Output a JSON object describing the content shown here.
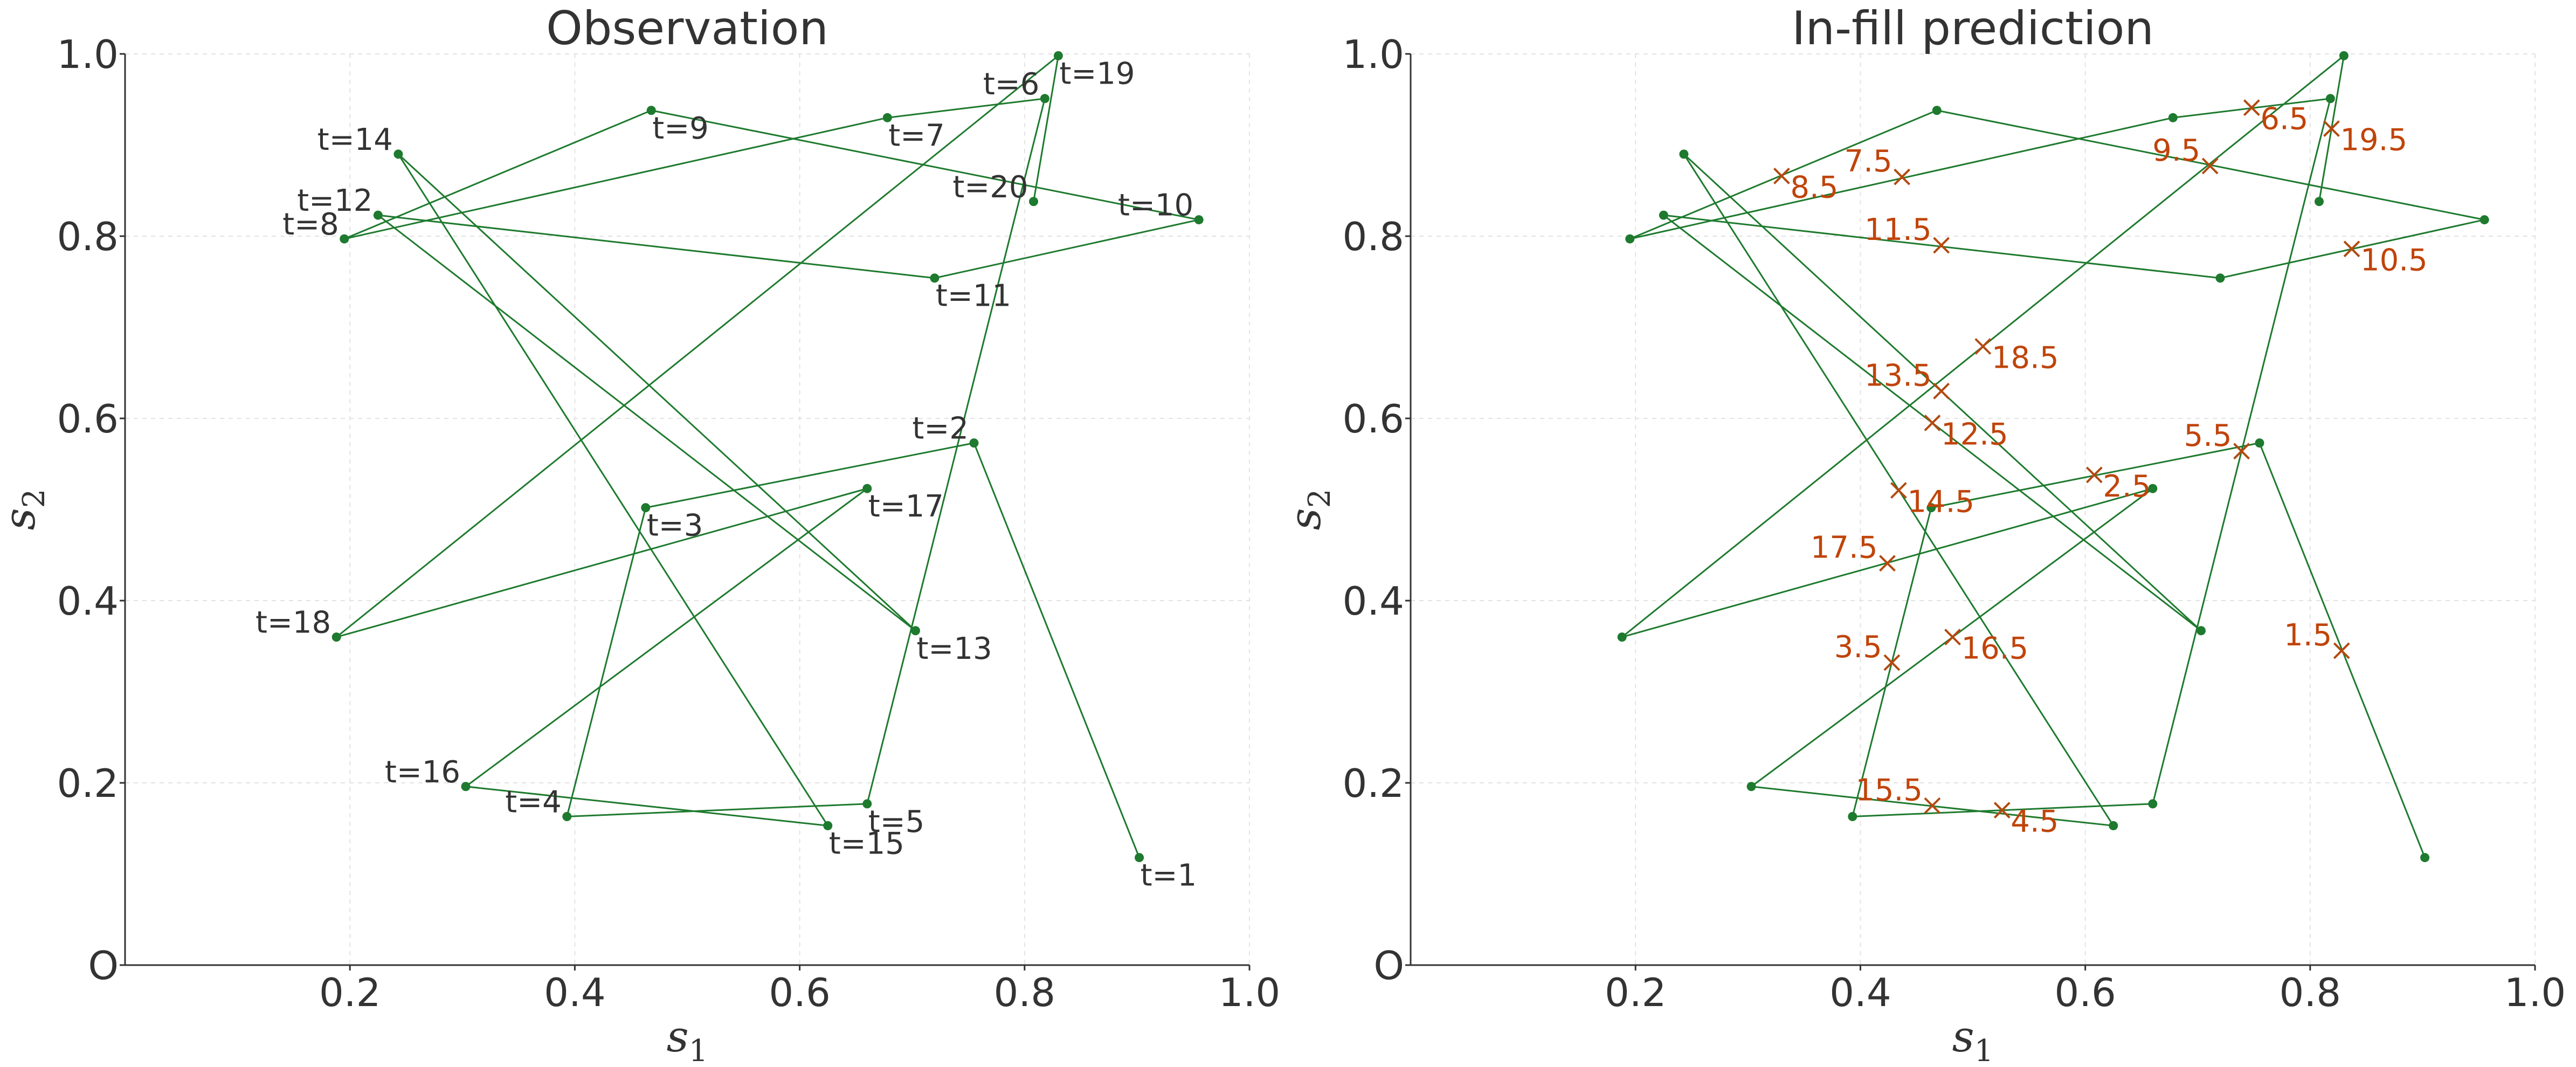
{
  "colors": {
    "path": "#1e7a2e",
    "marker": "#1e7a2e",
    "prediction": "#b24a10",
    "prediction_text": "#c0440a",
    "axis": "#333333",
    "grid": "#e3e3e3"
  },
  "chart_data": [
    {
      "type": "line",
      "title": "Observation",
      "xlabel": "s",
      "xlabel_sub": "1",
      "ylabel": "s",
      "ylabel_sub": "2",
      "xlim": [
        0,
        1
      ],
      "ylim": [
        0,
        1
      ],
      "xticks": [
        {
          "v": 0.2,
          "label": "0.2"
        },
        {
          "v": 0.4,
          "label": "0.4"
        },
        {
          "v": 0.6,
          "label": "0.6"
        },
        {
          "v": 0.8,
          "label": "0.8"
        },
        {
          "v": 1.0,
          "label": "1.0"
        }
      ],
      "yticks": [
        {
          "v": 0.0,
          "label": "O"
        },
        {
          "v": 0.2,
          "label": "0.2"
        },
        {
          "v": 0.4,
          "label": "0.4"
        },
        {
          "v": 0.6,
          "label": "0.6"
        },
        {
          "v": 0.8,
          "label": "0.8"
        },
        {
          "v": 1.0,
          "label": "1.0"
        }
      ],
      "grid": true,
      "points": [
        {
          "t": 1,
          "label": "t=1",
          "x": 0.902,
          "y": 0.118,
          "pos": "below"
        },
        {
          "t": 2,
          "label": "t=2",
          "x": 0.755,
          "y": 0.573,
          "pos": "left"
        },
        {
          "t": 3,
          "label": "t=3",
          "x": 0.463,
          "y": 0.502,
          "pos": "below"
        },
        {
          "t": 4,
          "label": "t=4",
          "x": 0.393,
          "y": 0.163,
          "pos": "left"
        },
        {
          "t": 5,
          "label": "t=5",
          "x": 0.66,
          "y": 0.177,
          "pos": "below"
        },
        {
          "t": 6,
          "label": "t=6",
          "x": 0.818,
          "y": 0.951,
          "pos": "left"
        },
        {
          "t": 7,
          "label": "t=7",
          "x": 0.678,
          "y": 0.93,
          "pos": "below"
        },
        {
          "t": 8,
          "label": "t=8",
          "x": 0.195,
          "y": 0.797,
          "pos": "left"
        },
        {
          "t": 9,
          "label": "t=9",
          "x": 0.468,
          "y": 0.938,
          "pos": "below"
        },
        {
          "t": 10,
          "label": "t=10",
          "x": 0.955,
          "y": 0.818,
          "pos": "left"
        },
        {
          "t": 11,
          "label": "t=11",
          "x": 0.72,
          "y": 0.754,
          "pos": "below"
        },
        {
          "t": 12,
          "label": "t=12",
          "x": 0.225,
          "y": 0.823,
          "pos": "left"
        },
        {
          "t": 13,
          "label": "t=13",
          "x": 0.703,
          "y": 0.367,
          "pos": "below"
        },
        {
          "t": 14,
          "label": "t=14",
          "x": 0.243,
          "y": 0.89,
          "pos": "left"
        },
        {
          "t": 15,
          "label": "t=15",
          "x": 0.625,
          "y": 0.153,
          "pos": "below"
        },
        {
          "t": 16,
          "label": "t=16",
          "x": 0.303,
          "y": 0.196,
          "pos": "left"
        },
        {
          "t": 17,
          "label": "t=17",
          "x": 0.66,
          "y": 0.523,
          "pos": "below"
        },
        {
          "t": 18,
          "label": "t=18",
          "x": 0.188,
          "y": 0.36,
          "pos": "left"
        },
        {
          "t": 19,
          "label": "t=19",
          "x": 0.83,
          "y": 0.998,
          "pos": "below"
        },
        {
          "t": 20,
          "label": "t=20",
          "x": 0.808,
          "y": 0.838,
          "pos": "left"
        }
      ]
    },
    {
      "type": "line",
      "title": "In-fill prediction",
      "xlabel": "s",
      "xlabel_sub": "1",
      "ylabel": "s",
      "ylabel_sub": "2",
      "xlim": [
        0,
        1
      ],
      "ylim": [
        0,
        1
      ],
      "xticks": [
        {
          "v": 0.2,
          "label": "0.2"
        },
        {
          "v": 0.4,
          "label": "0.4"
        },
        {
          "v": 0.6,
          "label": "0.6"
        },
        {
          "v": 0.8,
          "label": "0.8"
        },
        {
          "v": 1.0,
          "label": "1.0"
        }
      ],
      "yticks": [
        {
          "v": 0.0,
          "label": "O"
        },
        {
          "v": 0.2,
          "label": "0.2"
        },
        {
          "v": 0.4,
          "label": "0.4"
        },
        {
          "v": 0.6,
          "label": "0.6"
        },
        {
          "v": 0.8,
          "label": "0.8"
        },
        {
          "v": 1.0,
          "label": "1.0"
        }
      ],
      "grid": true,
      "path_from": "Observation",
      "predictions": [
        {
          "t": 1.5,
          "label": "1.5",
          "x": 0.828,
          "y": 0.345,
          "pos": "left"
        },
        {
          "t": 2.5,
          "label": "2.5",
          "x": 0.608,
          "y": 0.538,
          "pos": "right"
        },
        {
          "t": 3.5,
          "label": "3.5",
          "x": 0.428,
          "y": 0.332,
          "pos": "left"
        },
        {
          "t": 4.5,
          "label": "4.5",
          "x": 0.526,
          "y": 0.17,
          "pos": "right"
        },
        {
          "t": 5.5,
          "label": "5.5",
          "x": 0.739,
          "y": 0.564,
          "pos": "left"
        },
        {
          "t": 6.5,
          "label": "6.5",
          "x": 0.748,
          "y": 0.941,
          "pos": "right"
        },
        {
          "t": 7.5,
          "label": "7.5",
          "x": 0.437,
          "y": 0.865,
          "pos": "left"
        },
        {
          "t": 8.5,
          "label": "8.5",
          "x": 0.33,
          "y": 0.866,
          "pos": "right"
        },
        {
          "t": 9.5,
          "label": "9.5",
          "x": 0.711,
          "y": 0.877,
          "pos": "left"
        },
        {
          "t": 10.5,
          "label": "10.5",
          "x": 0.837,
          "y": 0.786,
          "pos": "right"
        },
        {
          "t": 11.5,
          "label": "11.5",
          "x": 0.472,
          "y": 0.79,
          "pos": "left"
        },
        {
          "t": 12.5,
          "label": "12.5",
          "x": 0.464,
          "y": 0.595,
          "pos": "right"
        },
        {
          "t": 13.5,
          "label": "13.5",
          "x": 0.472,
          "y": 0.63,
          "pos": "left"
        },
        {
          "t": 14.5,
          "label": "14.5",
          "x": 0.434,
          "y": 0.521,
          "pos": "right"
        },
        {
          "t": 15.5,
          "label": "15.5",
          "x": 0.464,
          "y": 0.175,
          "pos": "left"
        },
        {
          "t": 16.5,
          "label": "16.5",
          "x": 0.482,
          "y": 0.36,
          "pos": "right"
        },
        {
          "t": 17.5,
          "label": "17.5",
          "x": 0.424,
          "y": 0.441,
          "pos": "left"
        },
        {
          "t": 18.5,
          "label": "18.5",
          "x": 0.509,
          "y": 0.679,
          "pos": "right"
        },
        {
          "t": 19.5,
          "label": "19.5",
          "x": 0.819,
          "y": 0.918,
          "pos": "right"
        }
      ]
    }
  ]
}
